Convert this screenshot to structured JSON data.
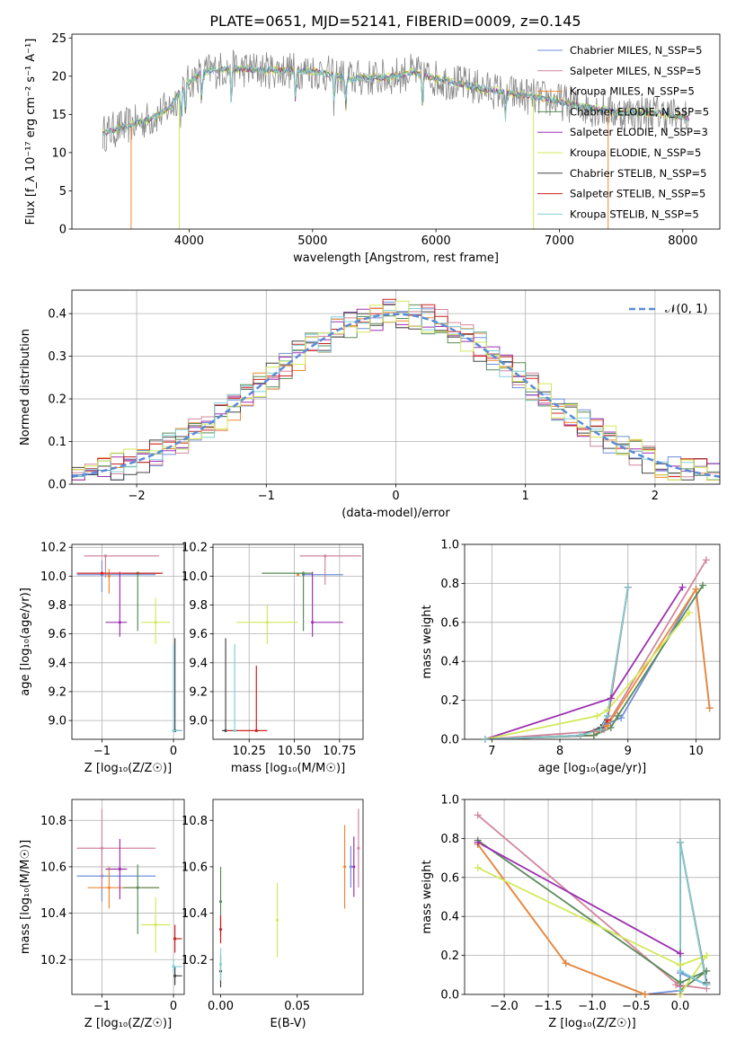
{
  "figure": {
    "title": "PLATE=0651, MJD=52141, FIBERID=0009, z=0.145"
  },
  "colors": {
    "Chabrier MILES": "#6f8fd8",
    "Salpeter MILES": "#d2869c",
    "Kroupa MILES": "#ee8833",
    "Chabrier ELODIE": "#5a8a5a",
    "Salpeter ELODIE": "#9b30b0",
    "Kroupa ELODIE": "#d4e85a",
    "Chabrier STELIB": "#444444",
    "Salpeter STELIB": "#cc2222",
    "Kroupa STELIB": "#80d0d8",
    "Salpeter MILES (cross)": "#e884c0",
    "normal": "#5b8bd8"
  },
  "chart_data": [
    {
      "id": "spectrum",
      "type": "line",
      "title": "PLATE=0651, MJD=52141, FIBERID=0009, z=0.145",
      "xlabel": "wavelength [Angstrom, rest frame]",
      "ylabel": "Flux [f_λ 10⁻¹⁷ erg cm⁻² s⁻¹ A⁻¹]",
      "xlim": [
        3050,
        8300
      ],
      "ylim": [
        0,
        25.5
      ],
      "xticks": [
        4000,
        5000,
        6000,
        7000,
        8000
      ],
      "yticks": [
        0,
        5,
        10,
        15,
        20,
        25
      ],
      "grid": false,
      "legend_position": "top-right",
      "legend": [
        "Chabrier MILES, N_SSP=5",
        "Salpeter MILES, N_SSP=5",
        "Kroupa MILES, N_SSP=5",
        "Chabrier ELODIE, N_SSP=5",
        "Salpeter ELODIE, N_SSP=3",
        "Kroupa ELODIE, N_SSP=5",
        "Chabrier STELIB, N_SSP=5",
        "Salpeter STELIB, N_SSP=5",
        "Kroupa STELIB, N_SSP=5"
      ],
      "continuum": [
        [
          3300,
          12.5
        ],
        [
          3500,
          13.5
        ],
        [
          3700,
          14.5
        ],
        [
          3850,
          16.0
        ],
        [
          3950,
          18.5
        ],
        [
          4100,
          20.5
        ],
        [
          4300,
          21.0
        ],
        [
          4600,
          20.8
        ],
        [
          5000,
          20.7
        ],
        [
          5300,
          19.7
        ],
        [
          5600,
          19.8
        ],
        [
          5800,
          20.5
        ],
        [
          6100,
          19.3
        ],
        [
          6400,
          18.3
        ],
        [
          6700,
          17.5
        ],
        [
          6900,
          17.0
        ],
        [
          7200,
          16.0
        ],
        [
          7500,
          15.2
        ],
        [
          7800,
          15.2
        ],
        [
          8050,
          14.5
        ]
      ]
    },
    {
      "id": "residuals",
      "type": "histogram",
      "xlabel": "(data-model)/error",
      "ylabel": "Normed distribution",
      "xlim": [
        -2.5,
        2.5
      ],
      "ylim": [
        0,
        0.455
      ],
      "xticks": [
        -2,
        -1,
        0,
        1,
        2
      ],
      "yticks": [
        0.0,
        0.1,
        0.2,
        0.3,
        0.4
      ],
      "grid": true,
      "legend_position": "top-right",
      "legend": [
        "𝒩(0, 1)"
      ],
      "bin_width": 0.1
    },
    {
      "id": "age-vs-Z",
      "type": "scatter",
      "xlabel": "Z [log₁₀(Z/Z☉)]",
      "ylabel": "age  [log₁₀(age/yr)]",
      "xlim": [
        -1.42,
        0.15
      ],
      "ylim": [
        8.87,
        10.22
      ],
      "xticks": [
        -1,
        0
      ],
      "yticks": [
        9.0,
        9.2,
        9.4,
        9.6,
        9.8,
        10.0,
        10.2
      ],
      "grid": true,
      "points": [
        {
          "model": "Chabrier MILES",
          "x": -1.0,
          "y": 10.01,
          "xerr": [
            0.35,
            0.75
          ],
          "yerr": [
            0.12,
            0.1
          ]
        },
        {
          "model": "Salpeter MILES",
          "x": -0.95,
          "y": 10.14,
          "xerr": [
            0.3,
            0.75
          ],
          "yerr": [
            0.15,
            0.0
          ]
        },
        {
          "model": "Kroupa MILES",
          "x": -0.9,
          "y": 10.0,
          "xerr": [
            0.0,
            0.0
          ],
          "yerr": [
            0.12,
            0.05
          ]
        },
        {
          "model": "Chabrier ELODIE",
          "x": -0.5,
          "y": 10.02,
          "xerr": [
            0.2,
            0.3
          ],
          "yerr": [
            0.4,
            0.0
          ]
        },
        {
          "model": "Salpeter ELODIE",
          "x": -0.75,
          "y": 9.68,
          "xerr": [
            0.2,
            0.1
          ],
          "yerr": [
            0.1,
            0.35
          ]
        },
        {
          "model": "Kroupa ELODIE",
          "x": -0.25,
          "y": 9.68,
          "xerr": [
            0.2,
            0.2
          ],
          "yerr": [
            0.15,
            0.17
          ]
        },
        {
          "model": "Chabrier STELIB",
          "x": 0.02,
          "y": 8.93,
          "xerr": [
            0.0,
            0.1
          ],
          "yerr": [
            0.0,
            0.64
          ]
        },
        {
          "model": "Salpeter STELIB",
          "x": -1.0,
          "y": 10.02,
          "xerr": [
            0.35,
            0.85
          ],
          "yerr": [
            0.0,
            0.0
          ]
        },
        {
          "model": "Kroupa STELIB",
          "x": 0.0,
          "y": 8.93,
          "xerr": [
            0.0,
            0.12
          ],
          "yerr": [
            0.0,
            0.6
          ]
        }
      ]
    },
    {
      "id": "age-vs-mass",
      "type": "scatter",
      "xlabel": "mass [log₁₀(M/M☉)]",
      "ylabel": "",
      "xlim": [
        10.05,
        10.88
      ],
      "ylim": [
        8.87,
        10.22
      ],
      "xticks": [
        10.25,
        10.5,
        10.75
      ],
      "xtick_labels": [
        "10.25",
        "10.50",
        "10.75"
      ],
      "yticks": [
        9.0,
        9.2,
        9.4,
        9.6,
        9.8,
        10.0,
        10.2
      ],
      "grid": true,
      "points": [
        {
          "model": "Chabrier MILES",
          "x": 10.55,
          "y": 10.01,
          "xerr": [
            0.0,
            0.22
          ],
          "yerr": [
            0.0,
            0.0
          ]
        },
        {
          "model": "Salpeter MILES",
          "x": 10.67,
          "y": 10.14,
          "xerr": [
            0.14,
            0.2
          ],
          "yerr": [
            0.2,
            0.0
          ]
        },
        {
          "model": "Kroupa MILES",
          "x": 10.52,
          "y": 10.01,
          "xerr": [
            0.0,
            0.0
          ],
          "yerr": [
            0.0,
            0.0
          ]
        },
        {
          "model": "Chabrier ELODIE",
          "x": 10.55,
          "y": 10.02,
          "xerr": [
            0.23,
            0.05
          ],
          "yerr": [
            0.4,
            0.0
          ]
        },
        {
          "model": "Salpeter ELODIE",
          "x": 10.6,
          "y": 9.68,
          "xerr": [
            0.0,
            0.17
          ],
          "yerr": [
            0.1,
            0.35
          ]
        },
        {
          "model": "Kroupa ELODIE",
          "x": 10.35,
          "y": 9.68,
          "xerr": [
            0.17,
            0.17
          ],
          "yerr": [
            0.15,
            0.12
          ]
        },
        {
          "model": "Chabrier STELIB",
          "x": 10.12,
          "y": 8.93,
          "xerr": [
            0.02,
            0.0
          ],
          "yerr": [
            0.0,
            0.64
          ]
        },
        {
          "model": "Salpeter STELIB",
          "x": 10.29,
          "y": 8.93,
          "xerr": [
            0.16,
            0.06
          ],
          "yerr": [
            0.0,
            0.45
          ]
        },
        {
          "model": "Kroupa STELIB",
          "x": 10.17,
          "y": 8.93,
          "xerr": [
            0.0,
            0.0
          ],
          "yerr": [
            0.0,
            0.6
          ]
        }
      ]
    },
    {
      "id": "massweight-vs-age",
      "type": "line",
      "xlabel": "age  [log₁₀(age/yr)]",
      "ylabel": "mass weight",
      "xlim": [
        6.6,
        10.35
      ],
      "ylim": [
        0,
        1.0
      ],
      "xticks": [
        7,
        8,
        9,
        10
      ],
      "yticks": [
        0.0,
        0.2,
        0.4,
        0.6,
        0.8,
        1.0
      ],
      "grid": true,
      "series": [
        {
          "model": "Chabrier MILES",
          "x": [
            6.9,
            8.5,
            8.7,
            8.9,
            10.0,
            10.2
          ],
          "y": [
            0.0,
            0.02,
            0.08,
            0.11,
            0.77,
            0.16
          ]
        },
        {
          "model": "Salpeter MILES",
          "x": [
            6.9,
            8.5,
            8.65,
            10.15
          ],
          "y": [
            0.0,
            0.04,
            0.05,
            0.92
          ]
        },
        {
          "model": "Kroupa MILES",
          "x": [
            6.9,
            8.5,
            8.7,
            10.0,
            10.2
          ],
          "y": [
            0.0,
            0.02,
            0.07,
            0.77,
            0.16
          ]
        },
        {
          "model": "Chabrier ELODIE",
          "x": [
            6.9,
            8.5,
            8.75,
            8.85,
            10.1
          ],
          "y": [
            0.0,
            0.02,
            0.06,
            0.12,
            0.79
          ]
        },
        {
          "model": "Salpeter ELODIE",
          "x": [
            6.9,
            8.75,
            9.8
          ],
          "y": [
            0.0,
            0.21,
            0.78
          ]
        },
        {
          "model": "Kroupa ELODIE",
          "x": [
            6.9,
            8.55,
            8.7,
            9.9
          ],
          "y": [
            0.0,
            0.12,
            0.15,
            0.65
          ]
        },
        {
          "model": "Chabrier STELIB",
          "x": [
            6.9,
            8.3,
            8.6,
            8.7,
            9.0
          ],
          "y": [
            0.0,
            0.02,
            0.06,
            0.12,
            0.78
          ]
        },
        {
          "model": "Salpeter STELIB",
          "x": [
            6.9,
            8.3,
            8.6,
            8.7,
            9.0
          ],
          "y": [
            0.0,
            0.02,
            0.05,
            0.1,
            0.78
          ]
        },
        {
          "model": "Kroupa STELIB",
          "x": [
            6.9,
            8.3,
            8.6,
            8.7,
            9.0
          ],
          "y": [
            0.0,
            0.02,
            0.05,
            0.12,
            0.78
          ]
        }
      ]
    },
    {
      "id": "mass-vs-Z",
      "type": "scatter",
      "xlabel": "Z [log₁₀(Z/Z☉)]",
      "ylabel": "mass [log₁₀(M/M☉)]",
      "xlim": [
        -1.42,
        0.15
      ],
      "ylim": [
        10.05,
        10.89
      ],
      "xticks": [
        -1,
        0
      ],
      "yticks": [
        10.2,
        10.4,
        10.6,
        10.8
      ],
      "grid": true,
      "points": [
        {
          "model": "Chabrier MILES",
          "x": -1.0,
          "y": 10.56,
          "xerr": [
            0.35,
            0.75
          ],
          "yerr": [
            0.11,
            0.13
          ]
        },
        {
          "model": "Salpeter MILES",
          "x": -1.0,
          "y": 10.68,
          "xerr": [
            0.35,
            0.75
          ],
          "yerr": [
            0.17,
            0.17
          ]
        },
        {
          "model": "Kroupa MILES",
          "x": -0.9,
          "y": 10.51,
          "xerr": [
            0.3,
            0.7
          ],
          "yerr": [
            0.09,
            0.09
          ]
        },
        {
          "model": "Chabrier ELODIE",
          "x": -0.5,
          "y": 10.51,
          "xerr": [
            0.2,
            0.3
          ],
          "yerr": [
            0.2,
            0.1
          ]
        },
        {
          "model": "Salpeter ELODIE",
          "x": -0.75,
          "y": 10.59,
          "xerr": [
            0.2,
            0.1
          ],
          "yerr": [
            0.13,
            0.13
          ]
        },
        {
          "model": "Kroupa ELODIE",
          "x": -0.25,
          "y": 10.35,
          "xerr": [
            0.2,
            0.2
          ],
          "yerr": [
            0.12,
            0.12
          ]
        },
        {
          "model": "Chabrier STELIB",
          "x": 0.02,
          "y": 10.13,
          "xerr": [
            0.0,
            0.1
          ],
          "yerr": [
            0.04,
            0.04
          ]
        },
        {
          "model": "Salpeter STELIB",
          "x": 0.02,
          "y": 10.29,
          "xerr": [
            0.0,
            0.1
          ],
          "yerr": [
            0.06,
            0.06
          ]
        },
        {
          "model": "Kroupa STELIB",
          "x": 0.0,
          "y": 10.17,
          "xerr": [
            0.0,
            0.12
          ],
          "yerr": [
            0.03,
            0.03
          ]
        }
      ]
    },
    {
      "id": "mass-vs-ebv",
      "type": "scatter",
      "xlabel": "E(B-V)",
      "ylabel": "",
      "xlim": [
        -0.005,
        0.093
      ],
      "ylim": [
        10.05,
        10.89
      ],
      "xticks": [
        0.0,
        0.05
      ],
      "xtick_labels": [
        "0.00",
        "0.05"
      ],
      "yticks": [
        10.2,
        10.4,
        10.6,
        10.8
      ],
      "grid": false,
      "points": [
        {
          "model": "Chabrier MILES",
          "x": 0.085,
          "y": 10.6,
          "xerr": [
            0.0,
            0.0
          ],
          "yerr": [
            0.09,
            0.09
          ]
        },
        {
          "model": "Salpeter MILES",
          "x": 0.09,
          "y": 10.68,
          "xerr": [
            0.0,
            0.0
          ],
          "yerr": [
            0.17,
            0.17
          ]
        },
        {
          "model": "Kroupa MILES",
          "x": 0.081,
          "y": 10.6,
          "xerr": [
            0.0,
            0.0
          ],
          "yerr": [
            0.18,
            0.18
          ]
        },
        {
          "model": "Chabrier ELODIE",
          "x": 0.0,
          "y": 10.45,
          "xerr": [
            0.0,
            0.0
          ],
          "yerr": [
            0.15,
            0.15
          ]
        },
        {
          "model": "Salpeter ELODIE",
          "x": 0.087,
          "y": 10.6,
          "xerr": [
            0.0,
            0.0
          ],
          "yerr": [
            0.13,
            0.13
          ]
        },
        {
          "model": "Kroupa ELODIE",
          "x": 0.037,
          "y": 10.37,
          "xerr": [
            0.0,
            0.0
          ],
          "yerr": [
            0.16,
            0.16
          ]
        },
        {
          "model": "Chabrier STELIB",
          "x": 0.0,
          "y": 10.15,
          "xerr": [
            0.0,
            0.0
          ],
          "yerr": [
            0.07,
            0.07
          ]
        },
        {
          "model": "Salpeter STELIB",
          "x": 0.0,
          "y": 10.33,
          "xerr": [
            0.0,
            0.0
          ],
          "yerr": [
            0.06,
            0.06
          ]
        },
        {
          "model": "Kroupa STELIB",
          "x": 0.0,
          "y": 10.18,
          "xerr": [
            0.0,
            0.0
          ],
          "yerr": [
            0.07,
            0.07
          ]
        }
      ]
    },
    {
      "id": "massweight-vs-Z",
      "type": "line",
      "xlabel": "Z [log₁₀(Z/Z☉)]",
      "ylabel": "mass weight",
      "xlim": [
        -2.45,
        0.45
      ],
      "ylim": [
        0,
        1.0
      ],
      "xticks": [
        -2.0,
        -1.5,
        -1.0,
        -0.5,
        0.0
      ],
      "xtick_labels": [
        "−2.0",
        "−1.5",
        "−1.0",
        "−0.5",
        "0.0"
      ],
      "yticks": [
        0.0,
        0.2,
        0.4,
        0.6,
        0.8,
        1.0
      ],
      "grid": true,
      "series": [
        {
          "model": "Chabrier MILES",
          "x": [
            -2.3,
            -1.3,
            -0.4,
            0.0,
            0.0,
            0.3
          ],
          "y": [
            0.77,
            0.16,
            0.0,
            0.02,
            0.11,
            0.05
          ]
        },
        {
          "model": "Salpeter MILES",
          "x": [
            -2.3,
            0.0,
            -0.05,
            0.3
          ],
          "y": [
            0.92,
            0.04,
            0.05,
            0.03
          ]
        },
        {
          "model": "Kroupa MILES",
          "x": [
            -2.3,
            -1.3,
            -0.4,
            0.0
          ],
          "y": [
            0.77,
            0.16,
            0.0,
            0.0
          ]
        },
        {
          "model": "Chabrier ELODIE",
          "x": [
            -2.3,
            0.0,
            0.3,
            0.0
          ],
          "y": [
            0.79,
            0.06,
            0.12,
            0.02
          ]
        },
        {
          "model": "Salpeter ELODIE",
          "x": [
            -2.3,
            0.0,
            0.0
          ],
          "y": [
            0.78,
            0.21,
            0.0
          ]
        },
        {
          "model": "Kroupa ELODIE",
          "x": [
            -2.3,
            0.0,
            0.3,
            0.0
          ],
          "y": [
            0.65,
            0.15,
            0.2,
            0.0
          ]
        },
        {
          "model": "Chabrier STELIB",
          "x": [
            0.0,
            0.0,
            0.3
          ],
          "y": [
            0.02,
            0.78,
            0.06
          ]
        },
        {
          "model": "Salpeter STELIB",
          "x": [
            0.0,
            0.0,
            0.3
          ],
          "y": [
            0.02,
            0.78,
            0.05
          ]
        },
        {
          "model": "Kroupa STELIB",
          "x": [
            0.0,
            0.0,
            0.3,
            0.0
          ],
          "y": [
            0.02,
            0.78,
            0.05,
            0.12
          ]
        }
      ]
    }
  ]
}
